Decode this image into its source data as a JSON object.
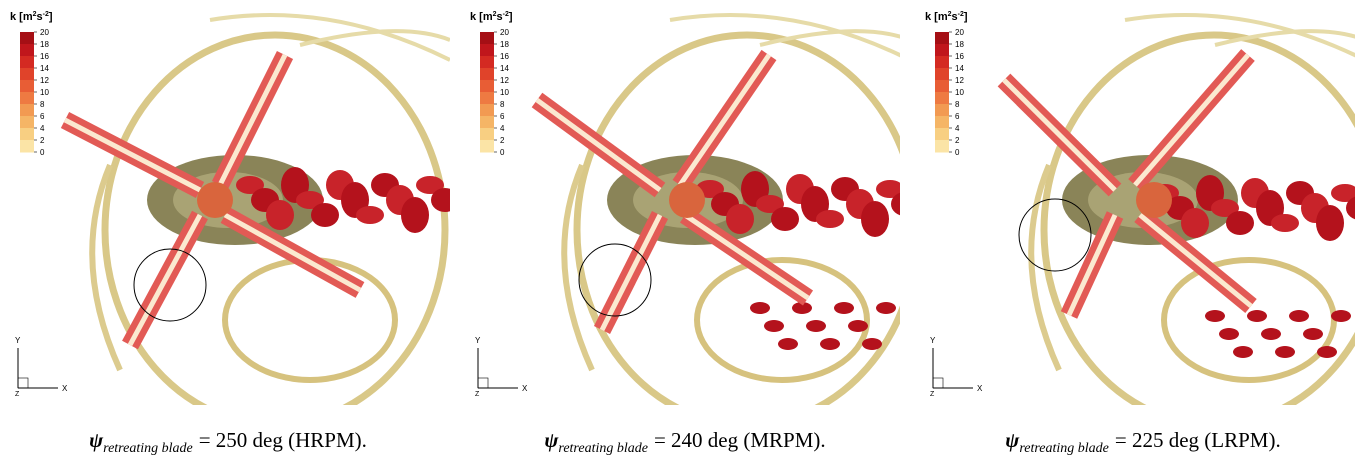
{
  "colorbar": {
    "label": {
      "base": "k [m",
      "sup1": "2",
      "mid": "s",
      "sup2": "-2",
      "end": "]"
    },
    "ticks": [
      20,
      18,
      16,
      14,
      12,
      10,
      8,
      6,
      4,
      2,
      0
    ]
  },
  "axes_triad": {
    "y": "Y",
    "x": "X",
    "z": "Z"
  },
  "panels": [
    {
      "caption": {
        "symbol": "ψ",
        "subscript": "retreating blade",
        "text": "= 250 deg (HRPM)."
      }
    },
    {
      "caption": {
        "symbol": "ψ",
        "subscript": "retreating blade",
        "text": "= 240 deg (MRPM)."
      }
    },
    {
      "caption": {
        "symbol": "ψ",
        "subscript": "retreating blade",
        "text": "= 225 deg (LRPM)."
      }
    }
  ]
}
